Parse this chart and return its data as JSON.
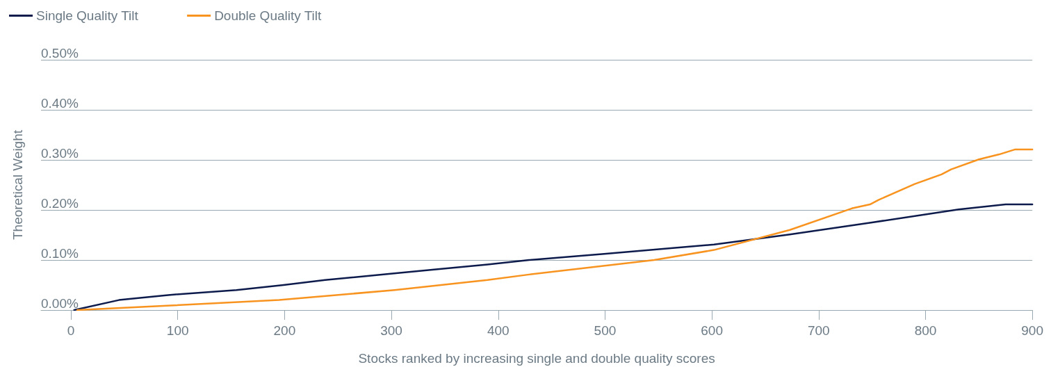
{
  "chart_data": {
    "type": "line",
    "xlabel": "Stocks ranked by increasing single and double quality scores",
    "ylabel": "Theoretical Weight",
    "xlim": [
      -28,
      900
    ],
    "xticks": [
      0,
      100,
      200,
      300,
      400,
      500,
      600,
      700,
      800,
      900
    ],
    "ylim": [
      0,
      0.5
    ],
    "yticks": [
      {
        "value": 0,
        "label": "0.00%"
      },
      {
        "value": 0.1,
        "label": "0.10%"
      },
      {
        "value": 0.2,
        "label": "0.20%"
      },
      {
        "value": 0.3,
        "label": "0.30%"
      },
      {
        "value": 0.4,
        "label": "0.40%"
      },
      {
        "value": 0.5,
        "label": "0.50%"
      }
    ],
    "grid": "y",
    "legend": "top left",
    "marker": "none",
    "line_style": "solid",
    "series": [
      {
        "name": "Single Quality Tilt",
        "color": "#0d1b4c",
        "x": [
          3,
          45,
          91,
          155,
          199,
          238,
          301,
          340,
          390,
          429,
          499,
          602,
          673,
          750,
          831,
          875,
          900
        ],
        "values": [
          0,
          0.02,
          0.03,
          0.04,
          0.05,
          0.06,
          0.073,
          0.081,
          0.091,
          0.1,
          0.112,
          0.131,
          0.151,
          0.175,
          0.201,
          0.211,
          0.211
        ]
      },
      {
        "name": "Double Quality Tilt",
        "color": "#f7931e",
        "x": [
          6,
          93,
          195,
          303,
          390,
          429,
          546,
          602,
          673,
          731,
          748,
          756,
          790,
          815,
          824,
          850,
          869,
          884,
          900
        ],
        "values": [
          0,
          0.009,
          0.02,
          0.04,
          0.06,
          0.071,
          0.1,
          0.12,
          0.16,
          0.203,
          0.211,
          0.22,
          0.252,
          0.271,
          0.281,
          0.301,
          0.311,
          0.321,
          0.321
        ]
      }
    ]
  }
}
